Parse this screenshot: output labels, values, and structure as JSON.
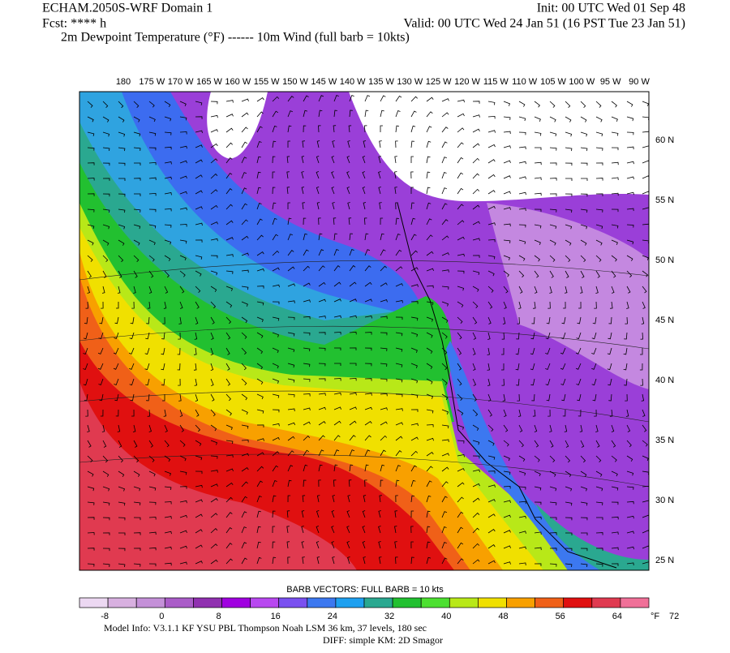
{
  "header": {
    "title": "ECHAM.2050S-WRF Domain 1",
    "init": "Init: 00 UTC Wed 01 Sep 48",
    "forecast": "Fcst: **** h",
    "valid": "Valid: 00 UTC Wed 24 Jan 51 (16 PST Tue 23 Jan 51)",
    "fields": "2m Dewpoint Temperature (°F) ------ 10m Wind (full barb = 10kts)"
  },
  "map": {
    "longitude_labels": [
      "180",
      "175 W",
      "170 W",
      "165 W",
      "160 W",
      "155 W",
      "150 W",
      "145 W",
      "140 W",
      "135 W",
      "130 W",
      "125 W",
      "120 W",
      "115 W",
      "110 W",
      "105 W",
      "100 W",
      "95 W",
      "90 W"
    ],
    "latitude_labels": [
      "60 N",
      "55 N",
      "50 N",
      "45 N",
      "40 N",
      "35 N",
      "30 N",
      "25 N"
    ]
  },
  "colorbar": {
    "caption": "BARB VECTORS:  FULL BARB = 10 kts",
    "labels": [
      "-8",
      "0",
      "8",
      "16",
      "24",
      "32",
      "40",
      "48",
      "56",
      "64",
      "72"
    ],
    "unit": "°F"
  },
  "footer": {
    "model_info": "Model Info: V3.1.1    KF      YSU PBL   Thompson      Noah LSM   36 km,     37 levels,   180 sec",
    "diff": "DIFF: simple KM: 2D Smagor"
  }
}
